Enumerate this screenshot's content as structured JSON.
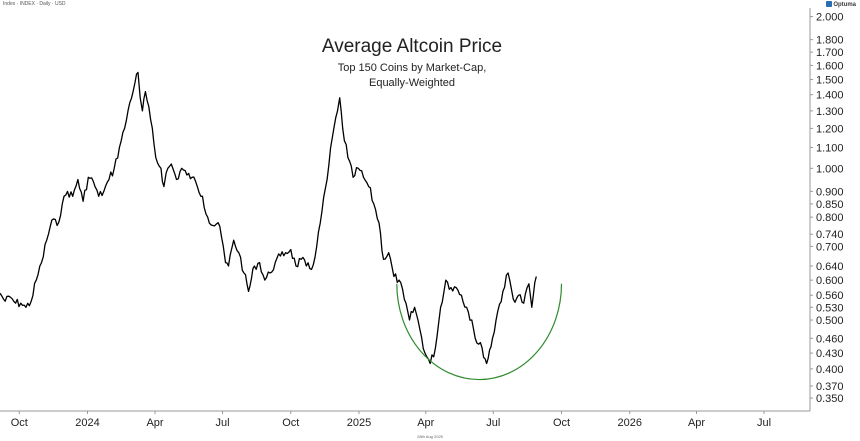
{
  "header": {
    "source_note": "Index · INDEX · Daily · USD"
  },
  "brand": {
    "name": "Optuma"
  },
  "footer": {
    "date_note": "28th Aug 2025"
  },
  "style": {
    "line_color": "#000000",
    "arc_color": "#2e8b2e",
    "axis_color": "#999999",
    "text_color": "#222222"
  },
  "chart_data": {
    "type": "line",
    "title": "Average Altcoin Price",
    "subtitle_lines": [
      "Top 150 Coins by Market-Cap,",
      "Equally-Weighted"
    ],
    "xlabel": "",
    "ylabel": "",
    "y_scale": "log",
    "grid": false,
    "legend": "none",
    "ylim": [
      0.33,
      2.08
    ],
    "xlim": [
      "2023-09-05",
      "2026-09-01"
    ],
    "x_tick_labels": [
      {
        "date": "2023-10-01",
        "label": "Oct"
      },
      {
        "date": "2024-01-01",
        "label": "2024"
      },
      {
        "date": "2024-04-01",
        "label": "Apr"
      },
      {
        "date": "2024-07-01",
        "label": "Jul"
      },
      {
        "date": "2024-10-01",
        "label": "Oct"
      },
      {
        "date": "2025-01-01",
        "label": "2025"
      },
      {
        "date": "2025-04-01",
        "label": "Apr"
      },
      {
        "date": "2025-07-01",
        "label": "Jul"
      },
      {
        "date": "2025-10-01",
        "label": "Oct"
      },
      {
        "date": "2026-01-01",
        "label": "2026"
      },
      {
        "date": "2026-04-01",
        "label": "Apr"
      },
      {
        "date": "2026-07-01",
        "label": "Jul"
      }
    ],
    "y_tick_labels": [
      "2.000",
      "1.800",
      "1.700",
      "1.600",
      "1.500",
      "1.400",
      "1.300",
      "1.200",
      "1.100",
      "1.000",
      "0.900",
      "0.850",
      "0.800",
      "0.740",
      "0.700",
      "0.640",
      "0.600",
      "0.560",
      "0.530",
      "0.500",
      "0.460",
      "0.430",
      "0.400",
      "0.370",
      "0.350"
    ],
    "series": [
      {
        "x": [
          "2023-09-05",
          "2023-09-12",
          "2023-09-19",
          "2023-09-26",
          "2023-10-03",
          "2023-10-10",
          "2023-10-17",
          "2023-10-24",
          "2023-10-31",
          "2023-11-07",
          "2023-11-14",
          "2023-11-21",
          "2023-11-28",
          "2023-12-05",
          "2023-12-12",
          "2023-12-19",
          "2023-12-26",
          "2024-01-02",
          "2024-01-09",
          "2024-01-16",
          "2024-01-23",
          "2024-01-30",
          "2024-02-06",
          "2024-02-13",
          "2024-02-20",
          "2024-02-27",
          "2024-03-05",
          "2024-03-09",
          "2024-03-12",
          "2024-03-15",
          "2024-03-19",
          "2024-03-26",
          "2024-04-02",
          "2024-04-09",
          "2024-04-13",
          "2024-04-16",
          "2024-04-23",
          "2024-04-30",
          "2024-05-07",
          "2024-05-14",
          "2024-05-21",
          "2024-05-28",
          "2024-06-04",
          "2024-06-11",
          "2024-06-18",
          "2024-06-25",
          "2024-07-02",
          "2024-07-05",
          "2024-07-09",
          "2024-07-16",
          "2024-07-23",
          "2024-07-30",
          "2024-08-05",
          "2024-08-13",
          "2024-08-20",
          "2024-08-27",
          "2024-09-03",
          "2024-09-10",
          "2024-09-17",
          "2024-09-24",
          "2024-10-01",
          "2024-10-08",
          "2024-10-15",
          "2024-10-22",
          "2024-10-29",
          "2024-11-05",
          "2024-11-12",
          "2024-11-19",
          "2024-11-26",
          "2024-12-03",
          "2024-12-06",
          "2024-12-10",
          "2024-12-17",
          "2024-12-24",
          "2024-12-31",
          "2025-01-07",
          "2025-01-14",
          "2025-01-21",
          "2025-01-28",
          "2025-02-03",
          "2025-02-10",
          "2025-02-17",
          "2025-02-24",
          "2025-03-03",
          "2025-03-10",
          "2025-03-17",
          "2025-03-24",
          "2025-03-31",
          "2025-04-07",
          "2025-04-14",
          "2025-04-21",
          "2025-04-28",
          "2025-05-05",
          "2025-05-12",
          "2025-05-19",
          "2025-05-26",
          "2025-06-02",
          "2025-06-09",
          "2025-06-16",
          "2025-06-22",
          "2025-06-30",
          "2025-07-07",
          "2025-07-14",
          "2025-07-21",
          "2025-07-28",
          "2025-08-04",
          "2025-08-11",
          "2025-08-18",
          "2025-08-22",
          "2025-08-28"
        ],
        "y": [
          0.565,
          0.545,
          0.555,
          0.54,
          0.54,
          0.53,
          0.545,
          0.6,
          0.65,
          0.72,
          0.79,
          0.77,
          0.85,
          0.9,
          0.88,
          0.95,
          0.86,
          0.96,
          0.94,
          0.88,
          0.9,
          0.95,
          1.0,
          1.1,
          1.2,
          1.35,
          1.48,
          1.55,
          1.38,
          1.3,
          1.42,
          1.25,
          1.05,
          1.0,
          0.92,
          0.98,
          1.02,
          0.95,
          1.0,
          0.97,
          0.96,
          0.92,
          0.88,
          0.8,
          0.77,
          0.78,
          0.7,
          0.65,
          0.64,
          0.72,
          0.68,
          0.62,
          0.57,
          0.64,
          0.65,
          0.6,
          0.62,
          0.65,
          0.67,
          0.68,
          0.69,
          0.64,
          0.66,
          0.64,
          0.63,
          0.7,
          0.82,
          0.95,
          1.15,
          1.3,
          1.38,
          1.2,
          1.05,
          0.96,
          1.0,
          0.96,
          0.92,
          0.85,
          0.78,
          0.66,
          0.68,
          0.61,
          0.6,
          0.55,
          0.5,
          0.53,
          0.48,
          0.43,
          0.41,
          0.44,
          0.53,
          0.6,
          0.58,
          0.58,
          0.56,
          0.53,
          0.5,
          0.45,
          0.44,
          0.41,
          0.46,
          0.52,
          0.57,
          0.62,
          0.55,
          0.56,
          0.54,
          0.59,
          0.53,
          0.61
        ]
      }
    ],
    "annotations": [
      {
        "type": "arc",
        "from": "2025-02-21",
        "to": "2025-10-01",
        "top_y": 0.59,
        "bottom_y": 0.381
      }
    ]
  }
}
